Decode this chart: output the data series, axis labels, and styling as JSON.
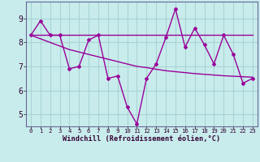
{
  "title": "",
  "xlabel": "Windchill (Refroidissement éolien,°C)",
  "ylabel": "",
  "bg_color": "#c8ecec",
  "grid_color": "#aad4d4",
  "line_color": "#990099",
  "x": [
    0,
    1,
    2,
    3,
    4,
    5,
    6,
    7,
    8,
    9,
    10,
    11,
    12,
    13,
    14,
    15,
    16,
    17,
    18,
    19,
    20,
    21,
    22,
    23
  ],
  "y_main": [
    8.3,
    8.9,
    8.3,
    8.3,
    6.9,
    7.0,
    8.1,
    8.3,
    6.5,
    6.6,
    5.3,
    4.6,
    6.5,
    7.1,
    8.2,
    9.4,
    7.8,
    8.6,
    7.9,
    7.1,
    8.3,
    7.5,
    6.3,
    6.5
  ],
  "y_line1": [
    8.3,
    8.3,
    8.3,
    8.3,
    8.3,
    8.3,
    8.3,
    8.3,
    8.3,
    8.3,
    8.3,
    8.3,
    8.3,
    8.3,
    8.3,
    8.3,
    8.3,
    8.3,
    8.3,
    8.3,
    8.3,
    8.3,
    8.3,
    8.3
  ],
  "y_line2": [
    8.3,
    8.15,
    8.0,
    7.85,
    7.7,
    7.6,
    7.5,
    7.4,
    7.3,
    7.2,
    7.1,
    7.0,
    6.95,
    6.88,
    6.82,
    6.78,
    6.74,
    6.7,
    6.67,
    6.64,
    6.61,
    6.59,
    6.57,
    6.55
  ],
  "ylim": [
    4.5,
    9.7
  ],
  "xlim": [
    -0.5,
    23.5
  ],
  "yticks": [
    5,
    6,
    7,
    8,
    9
  ],
  "xticks": [
    0,
    1,
    2,
    3,
    4,
    5,
    6,
    7,
    8,
    9,
    10,
    11,
    12,
    13,
    14,
    15,
    16,
    17,
    18,
    19,
    20,
    21,
    22,
    23
  ]
}
